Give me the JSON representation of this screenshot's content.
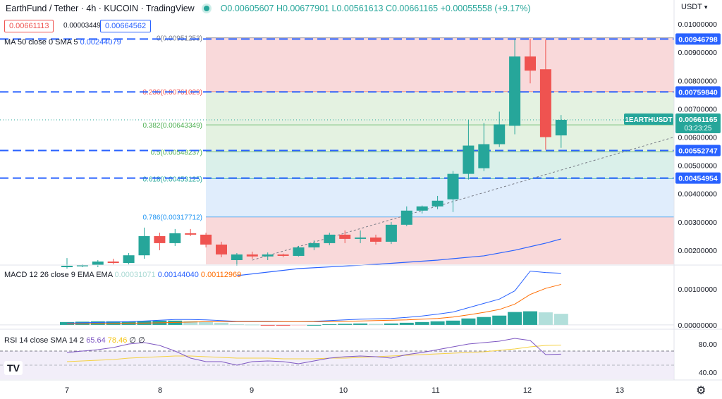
{
  "header": {
    "symbol_title": "EarthFund / Tether · 4h · KUCOIN · TradingView",
    "open": "O0.00605607",
    "high": "H0.00677901",
    "low": "L0.00561613",
    "close": "C0.00661165",
    "change": "+0.00055558 (+9.17%)",
    "currency": "USDT",
    "sell_price": "0.00661113",
    "spread": "0.00003449",
    "buy_price": "0.00664562"
  },
  "colors": {
    "up": "#26a69a",
    "down": "#ef5350",
    "ma": "#2962ff",
    "signal": "#ff6d00",
    "rsi": "#7e57c2",
    "rsi_ma": "#f5d142",
    "dash": "#2962ff"
  },
  "chart_data": [
    {
      "type": "candlestick",
      "title": "EarthFund / Tether · 4h · KUCOIN",
      "x_labels": [
        "7",
        "8",
        "9",
        "10",
        "11",
        "12",
        "13"
      ],
      "ylim": [
        0.0015,
        0.0103
      ],
      "y_ticks": [
        0.01,
        0.009,
        0.008,
        0.007,
        0.006,
        0.005,
        0.004,
        0.003,
        0.002
      ],
      "y_tick_labels": [
        "0.01000000",
        "0.00900000",
        "0.00800000",
        "0.00700000",
        "0.00600000",
        "0.00500000",
        "0.00400000",
        "0.00300000",
        "0.00200000"
      ],
      "candles": [
        {
          "o": 0.0014,
          "h": 0.00172,
          "l": 0.00135,
          "c": 0.00145
        },
        {
          "o": 0.00145,
          "h": 0.0015,
          "l": 0.0014,
          "c": 0.00148
        },
        {
          "o": 0.00148,
          "h": 0.00165,
          "l": 0.0014,
          "c": 0.0016
        },
        {
          "o": 0.0016,
          "h": 0.0017,
          "l": 0.0015,
          "c": 0.00155
        },
        {
          "o": 0.00155,
          "h": 0.0019,
          "l": 0.0015,
          "c": 0.00182
        },
        {
          "o": 0.00182,
          "h": 0.0028,
          "l": 0.0017,
          "c": 0.0025
        },
        {
          "o": 0.0025,
          "h": 0.00262,
          "l": 0.002,
          "c": 0.00225
        },
        {
          "o": 0.00225,
          "h": 0.00275,
          "l": 0.00215,
          "c": 0.0026
        },
        {
          "o": 0.0026,
          "h": 0.00275,
          "l": 0.0025,
          "c": 0.00255
        },
        {
          "o": 0.00255,
          "h": 0.00262,
          "l": 0.0021,
          "c": 0.0022
        },
        {
          "o": 0.0022,
          "h": 0.0023,
          "l": 0.00175,
          "c": 0.00185
        },
        {
          "o": 0.00165,
          "h": 0.0019,
          "l": 0.00145,
          "c": 0.00185
        },
        {
          "o": 0.00185,
          "h": 0.00195,
          "l": 0.0017,
          "c": 0.00178
        },
        {
          "o": 0.00178,
          "h": 0.00192,
          "l": 0.00165,
          "c": 0.00185
        },
        {
          "o": 0.00185,
          "h": 0.00188,
          "l": 0.00175,
          "c": 0.0018
        },
        {
          "o": 0.0018,
          "h": 0.00215,
          "l": 0.00178,
          "c": 0.0021
        },
        {
          "o": 0.0021,
          "h": 0.00235,
          "l": 0.002,
          "c": 0.00225
        },
        {
          "o": 0.00225,
          "h": 0.00262,
          "l": 0.00218,
          "c": 0.00255
        },
        {
          "o": 0.00255,
          "h": 0.0027,
          "l": 0.00225,
          "c": 0.0024
        },
        {
          "o": 0.00245,
          "h": 0.0027,
          "l": 0.00225,
          "c": 0.00245
        },
        {
          "o": 0.00245,
          "h": 0.00255,
          "l": 0.0022,
          "c": 0.0023
        },
        {
          "o": 0.0023,
          "h": 0.003,
          "l": 0.00222,
          "c": 0.0029
        },
        {
          "o": 0.0029,
          "h": 0.00355,
          "l": 0.00285,
          "c": 0.0034
        },
        {
          "o": 0.0034,
          "h": 0.00358,
          "l": 0.0033,
          "c": 0.00355
        },
        {
          "o": 0.00355,
          "h": 0.00392,
          "l": 0.00345,
          "c": 0.00375
        },
        {
          "o": 0.0038,
          "h": 0.0048,
          "l": 0.00335,
          "c": 0.0047
        },
        {
          "o": 0.0047,
          "h": 0.0066,
          "l": 0.0045,
          "c": 0.0057
        },
        {
          "o": 0.0049,
          "h": 0.0065,
          "l": 0.0048,
          "c": 0.00575
        },
        {
          "o": 0.00575,
          "h": 0.0069,
          "l": 0.00565,
          "c": 0.00645
        },
        {
          "o": 0.0064,
          "h": 0.00945,
          "l": 0.0061,
          "c": 0.00885
        },
        {
          "o": 0.00885,
          "h": 0.00948,
          "l": 0.0079,
          "c": 0.00835
        },
        {
          "o": 0.0084,
          "h": 0.00945,
          "l": 0.00555,
          "c": 0.006
        },
        {
          "o": 0.00606,
          "h": 0.00678,
          "l": 0.00562,
          "c": 0.00661
        }
      ],
      "ma50": [
        {
          "i": 11,
          "v": 0.0011
        },
        {
          "i": 15,
          "v": 0.00135
        },
        {
          "i": 20,
          "v": 0.0015
        },
        {
          "i": 24,
          "v": 0.00165
        },
        {
          "i": 27,
          "v": 0.0018
        },
        {
          "i": 29,
          "v": 0.002
        },
        {
          "i": 31,
          "v": 0.00225
        },
        {
          "i": 32,
          "v": 0.0024
        }
      ],
      "fib_levels": [
        {
          "label": "0(0.00951253)",
          "value": 0.00951253
        },
        {
          "label": "0.236(0.00761029)",
          "value": 0.00761029
        },
        {
          "label": "0.382(0.00643349)",
          "value": 0.00643349
        },
        {
          "label": "0.5(0.00548237)",
          "value": 0.00548237
        },
        {
          "label": "0.618(0.00453125)",
          "value": 0.00453125
        },
        {
          "label": "0.786(0.00317712)",
          "value": 0.00317712
        }
      ],
      "horizontal_lines": [
        0.00946798,
        0.0075984,
        0.00552747,
        0.00454954
      ],
      "price_tags": [
        {
          "label": "0.00946798",
          "value": 0.00946798
        },
        {
          "label": "0.00759840",
          "value": 0.0075984
        },
        {
          "label": "0.00552747",
          "value": 0.00552747
        },
        {
          "label": "0.00454954",
          "value": 0.00454954
        }
      ],
      "last_price": {
        "symbol": "1EARTHUSDT",
        "value": 0.00661165,
        "label": "0.00661165",
        "timer": "03:23:25"
      },
      "ma_legend": {
        "name": "MA 50 close 0 SMA 5",
        "value": "0.00244079"
      }
    },
    {
      "type": "macd",
      "legend": {
        "name": "MACD 12 26 close 9 EMA EMA",
        "hist": "0.00031071",
        "macd": "0.00144040",
        "signal": "0.00112969"
      },
      "ylim": [
        -0.0001,
        0.00165
      ],
      "y_tick_labels": [
        "0.00100000",
        "0.00000000"
      ],
      "y_ticks": [
        0.001,
        0.0
      ],
      "histogram": [
        8e-05,
        9e-05,
        0.0001,
        0.0001,
        0.0001,
        0.00011,
        0.00012,
        0.00012,
        0.00011,
        0.0001,
        6e-05,
        2e-05,
        1e-05,
        -1e-05,
        -2e-05,
        -1e-05,
        0.0,
        2e-05,
        3e-05,
        4e-05,
        3e-05,
        4e-05,
        6e-05,
        8e-05,
        0.0001,
        0.00012,
        0.00018,
        0.00022,
        0.00026,
        0.00036,
        0.00038,
        0.00035,
        0.00031
      ],
      "macd": [
        5e-05,
        6e-05,
        7e-05,
        8e-05,
        9e-05,
        0.00011,
        0.00013,
        0.00015,
        0.00015,
        0.00014,
        0.00012,
        0.0001,
        0.0001,
        0.0001,
        9e-05,
        9e-05,
        0.0001,
        0.00012,
        0.00014,
        0.00016,
        0.00017,
        0.00018,
        0.00021,
        0.00025,
        0.0003,
        0.00036,
        0.00048,
        0.0006,
        0.00072,
        0.00095,
        0.0015,
        0.00146,
        0.00144
      ],
      "signal": [
        3e-05,
        3e-05,
        4e-05,
        4e-05,
        5e-05,
        5e-05,
        6e-05,
        7e-05,
        8e-05,
        9e-05,
        9e-05,
        9e-05,
        9e-05,
        9e-05,
        9e-05,
        9e-05,
        9e-05,
        9e-05,
        0.0001,
        0.00011,
        0.00012,
        0.00013,
        0.00014,
        0.00016,
        0.00018,
        0.00022,
        0.00028,
        0.00035,
        0.00043,
        0.00058,
        0.00085,
        0.00102,
        0.00113
      ]
    },
    {
      "type": "rsi",
      "legend": {
        "name": "RSI 14 close SMA 14 2",
        "rsi": "65.64",
        "ma": "78.46",
        "extra": "∅ ∅"
      },
      "ylim": [
        30,
        100
      ],
      "y_ticks": [
        80,
        40
      ],
      "y_tick_labels": [
        "80.00",
        "40.00"
      ],
      "band": [
        70,
        30
      ],
      "rsi": [
        68,
        70,
        72,
        75,
        80,
        82,
        78,
        70,
        60,
        55,
        55,
        50,
        55,
        56,
        55,
        52,
        56,
        60,
        62,
        63,
        62,
        60,
        65,
        68,
        72,
        76,
        80,
        82,
        84,
        88,
        85,
        65,
        65.64
      ],
      "rsi_ma": [
        55,
        56,
        57,
        58,
        60,
        61,
        62,
        63,
        63,
        62,
        61,
        60,
        60,
        60,
        59,
        59,
        59,
        60,
        60,
        61,
        62,
        63,
        64,
        65,
        66,
        67,
        68,
        69,
        71,
        73,
        76,
        78,
        78.46
      ]
    }
  ],
  "time_axis": {
    "labels": [
      "7",
      "8",
      "9",
      "10",
      "11",
      "12",
      "13"
    ]
  }
}
